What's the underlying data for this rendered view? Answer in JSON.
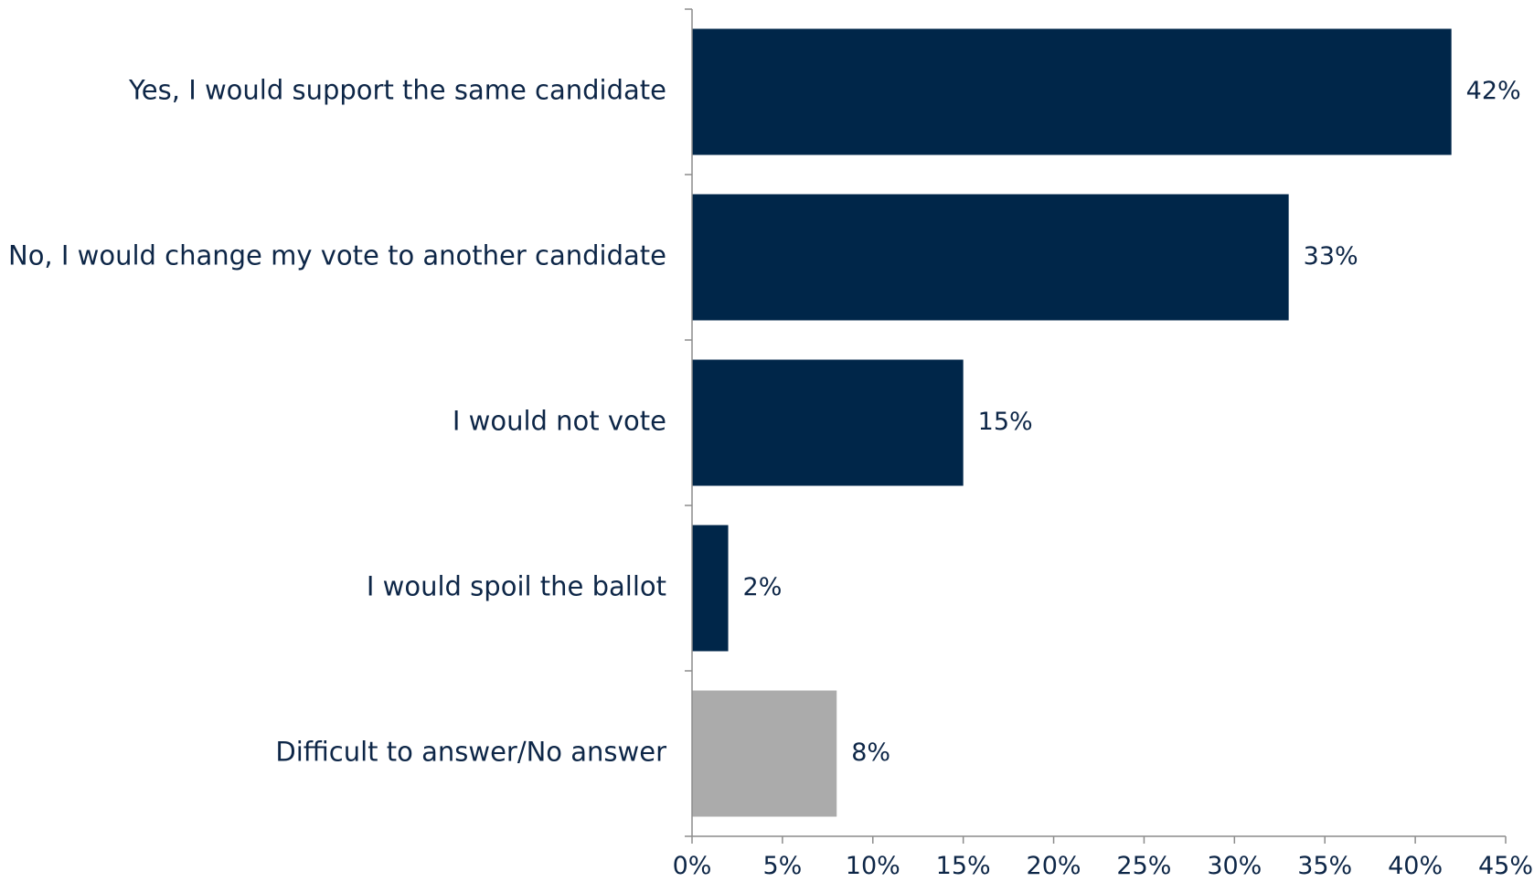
{
  "chart_data": {
    "type": "bar",
    "orientation": "horizontal",
    "categories": [
      "Yes, I would support the same candidate",
      "No, I would change my vote to another candidate",
      "I would not vote",
      "I would spoil the ballot",
      "Difficult to answer/No answer"
    ],
    "values": [
      42,
      33,
      15,
      2,
      8
    ],
    "value_labels": [
      "42%",
      "33%",
      "15%",
      "2%",
      "8%"
    ],
    "bar_colors": [
      "#002649",
      "#002649",
      "#002649",
      "#002649",
      "#ababab"
    ],
    "xlim": [
      0,
      45
    ],
    "x_ticks": [
      0,
      5,
      10,
      15,
      20,
      25,
      30,
      35,
      40,
      45
    ],
    "x_tick_labels": [
      "0%",
      "5%",
      "10%",
      "15%",
      "20%",
      "25%",
      "30%",
      "35%",
      "40%",
      "45%"
    ],
    "grid": false,
    "legend": "none",
    "title": "",
    "xlabel": "",
    "ylabel": ""
  }
}
